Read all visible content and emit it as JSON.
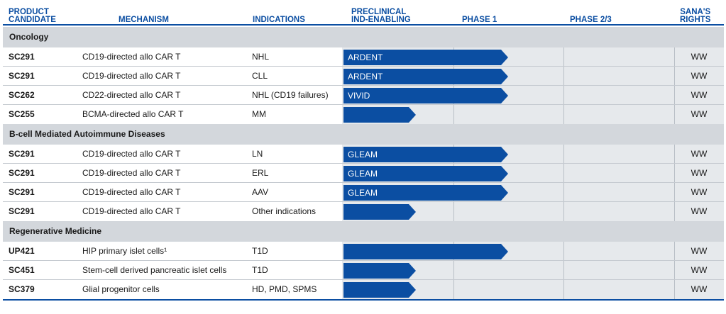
{
  "headers": {
    "candidate": [
      "PRODUCT",
      "CANDIDATE"
    ],
    "mechanism": "MECHANISM",
    "indications": "INDICATIONS",
    "preclinical": [
      "PRECLINICAL",
      "IND-ENABLING"
    ],
    "phase1": "PHASE 1",
    "phase23": "PHASE 2/3",
    "rights": [
      "SANA'S",
      "RIGHTS"
    ]
  },
  "colors": {
    "accent": "#0b4ea2",
    "section_bg": "#d3d7dc",
    "phase_bg": "#e6e9ec"
  },
  "sections": [
    {
      "title": "Oncology",
      "rows": [
        {
          "candidate": "SC291",
          "mechanism": "CD19-directed allo CAR T",
          "indication": "NHL",
          "bar_label": "ARDENT",
          "stage": "phase1",
          "rights": "WW"
        },
        {
          "candidate": "SC291",
          "mechanism": "CD19-directed allo CAR T",
          "indication": "CLL",
          "bar_label": "ARDENT",
          "stage": "phase1",
          "rights": "WW"
        },
        {
          "candidate": "SC262",
          "mechanism": "CD22-directed allo CAR T",
          "indication": "NHL (CD19 failures)",
          "bar_label": "VIVID",
          "stage": "phase1",
          "rights": "WW"
        },
        {
          "candidate": "SC255",
          "mechanism": "BCMA-directed allo CAR T",
          "indication": "MM",
          "bar_label": "",
          "stage": "preclinical",
          "rights": "WW"
        }
      ]
    },
    {
      "title": "B-cell Mediated Autoimmune Diseases",
      "rows": [
        {
          "candidate": "SC291",
          "mechanism": "CD19-directed allo CAR T",
          "indication": "LN",
          "bar_label": "GLEAM",
          "stage": "phase1",
          "rights": "WW"
        },
        {
          "candidate": "SC291",
          "mechanism": "CD19-directed allo CAR T",
          "indication": "ERL",
          "bar_label": "GLEAM",
          "stage": "phase1",
          "rights": "WW"
        },
        {
          "candidate": "SC291",
          "mechanism": "CD19-directed allo CAR T",
          "indication": "AAV",
          "bar_label": "GLEAM",
          "stage": "phase1",
          "rights": "WW"
        },
        {
          "candidate": "SC291",
          "mechanism": "CD19-directed allo CAR T",
          "indication": "Other indications",
          "bar_label": "",
          "stage": "preclinical",
          "rights": "WW"
        }
      ]
    },
    {
      "title": "Regenerative Medicine",
      "rows": [
        {
          "candidate": "UP421",
          "mechanism": "HIP primary islet cells¹",
          "indication": "T1D",
          "bar_label": "",
          "stage": "phase1",
          "rights": "WW"
        },
        {
          "candidate": "SC451",
          "mechanism": "Stem-cell derived pancreatic islet cells",
          "indication": "T1D",
          "bar_label": "",
          "stage": "preclinical",
          "rights": "WW"
        },
        {
          "candidate": "SC379",
          "mechanism": "Glial progenitor cells",
          "indication": "HD, PMD, SPMS",
          "bar_label": "",
          "stage": "preclinical",
          "rights": "WW"
        }
      ]
    }
  ]
}
